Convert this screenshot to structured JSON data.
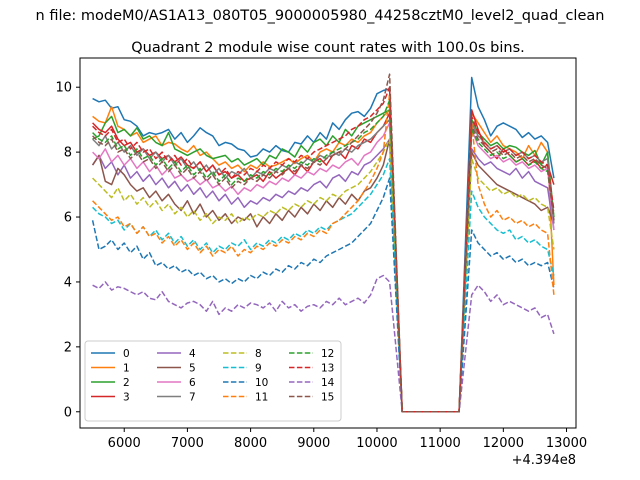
{
  "page": {
    "suptitle": "n file: modeM0/AS1A13_080T05_9000005980_44258cztM0_level2_quad_clean",
    "axes_offset_label": "+4.394e8"
  },
  "chart_data": {
    "type": "line",
    "title": "Quadrant 2 module wise count rates with 100.0s bins.",
    "xlabel": "",
    "ylabel": "",
    "x_offset": 439400000,
    "xlim": [
      5300,
      13150
    ],
    "ylim": [
      -0.5,
      10.9
    ],
    "x_ticks": [
      6000,
      7000,
      8000,
      9000,
      10000,
      11000,
      12000,
      13000
    ],
    "y_ticks": [
      0,
      2,
      4,
      6,
      8,
      10
    ],
    "grid": false,
    "legend_position": "lower-left",
    "legend_columns": 4,
    "x": [
      5500,
      5600,
      5700,
      5800,
      5900,
      6000,
      6100,
      6200,
      6300,
      6400,
      6500,
      6600,
      6700,
      6800,
      6900,
      7000,
      7100,
      7200,
      7300,
      7400,
      7500,
      7600,
      7700,
      7800,
      7900,
      8000,
      8100,
      8200,
      8300,
      8400,
      8500,
      8600,
      8700,
      8800,
      8900,
      9000,
      9100,
      9200,
      9300,
      9400,
      9500,
      9600,
      9700,
      9800,
      9900,
      10000,
      10100,
      10200,
      10400,
      11300,
      11500,
      11600,
      11700,
      11800,
      11900,
      12000,
      12100,
      12200,
      12300,
      12400,
      12500,
      12600,
      12700,
      12800
    ],
    "series": [
      {
        "name": "0",
        "color": "#1f77b4",
        "dash": "solid",
        "values": [
          9.65,
          9.55,
          9.6,
          9.35,
          9.4,
          9.0,
          8.95,
          8.8,
          8.5,
          8.6,
          8.55,
          8.6,
          8.7,
          8.4,
          8.6,
          8.3,
          8.5,
          8.75,
          8.6,
          8.5,
          8.2,
          8.3,
          8.25,
          8.1,
          8.05,
          7.85,
          7.9,
          8.1,
          8.0,
          8.2,
          8.05,
          8.0,
          8.3,
          8.25,
          8.5,
          8.3,
          8.6,
          8.4,
          8.9,
          8.7,
          9.0,
          9.2,
          9.25,
          9.1,
          9.35,
          9.8,
          9.9,
          9.95,
          0.0,
          0.0,
          10.3,
          9.4,
          9.0,
          8.5,
          8.8,
          8.9,
          8.8,
          8.7,
          8.45,
          8.6,
          8.4,
          8.5,
          8.3,
          7.2
        ]
      },
      {
        "name": "1",
        "color": "#ff7f0e",
        "dash": "solid",
        "values": [
          9.1,
          8.95,
          8.9,
          9.4,
          8.8,
          8.7,
          8.5,
          8.6,
          8.3,
          8.4,
          8.5,
          8.2,
          8.3,
          8.25,
          8.1,
          8.0,
          8.2,
          7.9,
          8.0,
          7.8,
          7.6,
          7.7,
          7.5,
          7.6,
          7.4,
          7.6,
          7.5,
          7.7,
          7.55,
          7.6,
          7.7,
          7.8,
          7.65,
          7.8,
          7.9,
          7.7,
          8.0,
          8.1,
          8.0,
          8.3,
          8.2,
          8.4,
          8.3,
          8.5,
          8.6,
          8.9,
          9.1,
          9.3,
          0.0,
          0.0,
          9.2,
          8.9,
          8.6,
          8.3,
          8.5,
          8.2,
          8.1,
          8.0,
          7.8,
          8.2,
          7.9,
          8.3,
          8.0,
          3.9
        ]
      },
      {
        "name": "2",
        "color": "#2ca02c",
        "dash": "solid",
        "values": [
          8.4,
          8.5,
          8.9,
          9.1,
          8.6,
          8.7,
          8.5,
          8.75,
          8.4,
          8.5,
          8.3,
          8.2,
          8.6,
          8.1,
          8.0,
          7.9,
          8.0,
          8.1,
          7.9,
          7.8,
          7.85,
          7.9,
          7.7,
          7.8,
          7.6,
          7.7,
          7.8,
          7.6,
          7.9,
          7.8,
          8.1,
          8.0,
          7.85,
          8.2,
          8.0,
          8.3,
          8.4,
          8.2,
          8.5,
          8.3,
          8.7,
          8.5,
          8.8,
          8.9,
          9.0,
          9.1,
          9.2,
          9.3,
          0.0,
          0.0,
          9.0,
          8.6,
          8.4,
          8.2,
          8.3,
          8.1,
          8.2,
          8.15,
          8.0,
          7.9,
          8.05,
          7.6,
          8.0,
          6.0
        ]
      },
      {
        "name": "3",
        "color": "#d62728",
        "dash": "solid",
        "values": [
          8.9,
          8.7,
          8.6,
          8.8,
          8.4,
          8.2,
          8.3,
          8.0,
          8.1,
          7.9,
          8.0,
          7.8,
          7.9,
          7.7,
          7.85,
          7.6,
          7.5,
          7.7,
          7.4,
          7.6,
          7.3,
          7.4,
          7.2,
          7.3,
          7.1,
          7.2,
          7.3,
          7.1,
          7.4,
          7.2,
          7.35,
          7.5,
          7.3,
          7.6,
          7.4,
          7.7,
          7.8,
          7.6,
          7.9,
          8.0,
          7.8,
          8.2,
          8.1,
          8.4,
          8.3,
          8.6,
          8.8,
          9.2,
          0.0,
          0.0,
          9.3,
          8.7,
          8.2,
          8.0,
          7.8,
          8.1,
          7.9,
          7.7,
          7.8,
          7.6,
          7.75,
          7.5,
          7.6,
          7.0
        ]
      },
      {
        "name": "4",
        "color": "#9467bd",
        "dash": "solid",
        "values": [
          7.6,
          7.9,
          7.5,
          7.7,
          7.3,
          7.6,
          7.2,
          7.4,
          7.1,
          7.3,
          7.0,
          7.2,
          6.9,
          7.1,
          6.8,
          7.0,
          6.7,
          6.9,
          6.6,
          6.8,
          6.5,
          6.7,
          6.4,
          6.6,
          6.3,
          6.5,
          6.4,
          6.6,
          6.5,
          6.7,
          6.6,
          6.8,
          6.7,
          6.9,
          6.8,
          7.0,
          7.1,
          6.9,
          7.2,
          7.3,
          7.1,
          7.4,
          7.3,
          7.6,
          7.7,
          7.9,
          8.1,
          8.4,
          0.0,
          0.0,
          8.1,
          7.8,
          7.6,
          7.7,
          7.5,
          7.4,
          7.3,
          7.5,
          7.2,
          7.4,
          7.1,
          7.0,
          6.9,
          5.6
        ]
      },
      {
        "name": "5",
        "color": "#8c564b",
        "dash": "solid",
        "values": [
          7.6,
          7.9,
          7.1,
          7.0,
          7.5,
          7.3,
          7.0,
          6.8,
          6.9,
          6.6,
          6.8,
          6.5,
          6.7,
          6.4,
          6.2,
          6.5,
          6.1,
          6.4,
          6.0,
          6.2,
          5.9,
          6.1,
          5.8,
          6.0,
          5.9,
          6.1,
          5.7,
          6.0,
          5.8,
          6.1,
          5.9,
          6.2,
          6.0,
          6.3,
          6.1,
          6.4,
          6.2,
          6.5,
          6.3,
          6.6,
          6.4,
          6.7,
          6.5,
          6.8,
          6.9,
          7.2,
          7.6,
          8.4,
          0.0,
          0.0,
          8.0,
          7.6,
          7.4,
          7.2,
          7.0,
          6.9,
          6.8,
          6.7,
          6.6,
          6.5,
          6.4,
          6.2,
          6.3,
          5.8
        ]
      },
      {
        "name": "6",
        "color": "#e377c2",
        "dash": "solid",
        "values": [
          8.0,
          7.8,
          8.1,
          7.7,
          7.9,
          7.6,
          7.8,
          7.5,
          7.7,
          7.4,
          7.6,
          7.3,
          7.5,
          7.2,
          7.3,
          7.1,
          7.2,
          7.0,
          7.15,
          6.9,
          7.0,
          6.8,
          6.95,
          6.7,
          6.9,
          6.8,
          7.0,
          6.9,
          7.1,
          7.0,
          7.2,
          7.1,
          7.3,
          7.2,
          7.4,
          7.3,
          7.5,
          7.4,
          7.6,
          7.5,
          7.7,
          7.8,
          7.6,
          7.9,
          8.0,
          8.3,
          8.5,
          8.9,
          0.0,
          0.0,
          8.7,
          8.2,
          8.0,
          7.8,
          7.9,
          7.7,
          7.8,
          7.6,
          7.7,
          7.5,
          7.6,
          7.4,
          7.5,
          5.6
        ]
      },
      {
        "name": "7",
        "color": "#7f7f7f",
        "dash": "solid",
        "values": [
          8.4,
          8.2,
          8.5,
          8.1,
          8.3,
          8.0,
          8.2,
          7.9,
          8.1,
          7.8,
          8.0,
          7.7,
          7.9,
          7.6,
          7.8,
          7.5,
          7.7,
          7.4,
          7.6,
          7.3,
          7.5,
          7.2,
          7.4,
          7.3,
          7.5,
          7.2,
          7.4,
          7.3,
          7.5,
          7.4,
          7.6,
          7.5,
          7.7,
          7.6,
          7.8,
          7.7,
          7.9,
          7.8,
          8.0,
          7.9,
          8.1,
          8.0,
          8.2,
          8.3,
          8.4,
          8.6,
          8.8,
          9.0,
          0.0,
          0.0,
          8.9,
          8.5,
          8.3,
          8.1,
          8.2,
          8.0,
          8.1,
          7.9,
          8.0,
          7.8,
          7.9,
          7.7,
          7.8,
          5.8
        ]
      },
      {
        "name": "8",
        "color": "#bcbd22",
        "dash": "dashed",
        "values": [
          7.2,
          7.0,
          6.8,
          6.6,
          6.9,
          6.5,
          6.7,
          6.4,
          6.6,
          6.3,
          6.5,
          6.2,
          6.4,
          6.1,
          6.3,
          6.0,
          6.2,
          5.9,
          6.1,
          5.8,
          6.0,
          5.9,
          6.1,
          5.8,
          6.0,
          5.9,
          6.1,
          6.0,
          6.2,
          6.1,
          6.3,
          6.2,
          6.4,
          6.3,
          6.5,
          6.4,
          6.6,
          6.5,
          6.7,
          6.6,
          6.8,
          6.9,
          7.0,
          7.2,
          7.4,
          7.7,
          8.0,
          8.4,
          0.0,
          0.0,
          7.8,
          7.2,
          7.0,
          6.8,
          6.9,
          6.7,
          6.8,
          6.6,
          6.7,
          6.5,
          6.6,
          6.4,
          6.3,
          5.0
        ]
      },
      {
        "name": "9",
        "color": "#17becf",
        "dash": "dashed",
        "values": [
          6.3,
          6.1,
          6.0,
          5.8,
          5.9,
          5.6,
          5.8,
          5.5,
          5.7,
          5.4,
          5.6,
          5.3,
          5.5,
          5.2,
          5.4,
          5.1,
          5.3,
          5.0,
          5.2,
          4.9,
          5.1,
          5.0,
          5.2,
          5.1,
          5.3,
          5.0,
          5.2,
          5.1,
          5.3,
          5.2,
          5.4,
          5.3,
          5.5,
          5.4,
          5.6,
          5.5,
          5.7,
          5.6,
          5.8,
          5.9,
          6.0,
          6.1,
          6.3,
          6.5,
          6.7,
          7.0,
          7.3,
          7.8,
          0.0,
          0.0,
          6.8,
          6.3,
          6.0,
          5.8,
          5.6,
          5.5,
          5.6,
          5.3,
          5.4,
          5.2,
          5.3,
          5.1,
          5.0,
          4.2
        ]
      },
      {
        "name": "10",
        "color": "#1f77b4",
        "dash": "dashed",
        "values": [
          5.9,
          5.0,
          5.1,
          5.3,
          5.0,
          5.2,
          4.9,
          5.1,
          4.7,
          4.9,
          4.5,
          4.6,
          4.4,
          4.5,
          4.3,
          4.4,
          4.2,
          4.3,
          4.1,
          4.2,
          4.0,
          4.1,
          3.95,
          4.1,
          4.0,
          4.2,
          4.1,
          4.3,
          4.2,
          4.4,
          4.3,
          4.5,
          4.4,
          4.6,
          4.5,
          4.7,
          4.6,
          4.8,
          4.9,
          5.0,
          5.1,
          5.2,
          5.4,
          5.6,
          5.8,
          6.2,
          6.6,
          7.2,
          0.0,
          0.0,
          5.6,
          5.2,
          5.0,
          4.8,
          4.9,
          4.7,
          4.8,
          4.6,
          4.7,
          4.5,
          4.6,
          4.5,
          4.6,
          3.8
        ]
      },
      {
        "name": "11",
        "color": "#ff7f0e",
        "dash": "dashed",
        "values": [
          6.5,
          6.3,
          6.1,
          5.9,
          6.0,
          5.7,
          5.8,
          5.5,
          5.7,
          5.4,
          5.5,
          5.2,
          5.4,
          5.1,
          5.3,
          5.0,
          5.2,
          4.9,
          5.1,
          4.8,
          5.0,
          4.9,
          5.1,
          4.8,
          5.0,
          4.9,
          5.1,
          5.0,
          5.2,
          5.1,
          5.3,
          5.2,
          5.4,
          5.3,
          5.5,
          5.4,
          5.6,
          5.5,
          5.8,
          5.9,
          6.1,
          6.3,
          6.5,
          6.8,
          7.1,
          7.5,
          8.0,
          9.8,
          0.0,
          0.0,
          8.9,
          7.0,
          6.4,
          6.0,
          6.2,
          5.9,
          6.0,
          5.8,
          5.9,
          5.7,
          5.8,
          5.6,
          5.5,
          3.6
        ]
      },
      {
        "name": "12",
        "color": "#2ca02c",
        "dash": "dashed",
        "values": [
          8.6,
          8.4,
          8.3,
          8.5,
          8.1,
          8.2,
          7.9,
          8.1,
          7.8,
          7.9,
          7.6,
          7.8,
          7.5,
          7.7,
          7.4,
          7.6,
          7.3,
          7.5,
          7.2,
          7.4,
          7.1,
          7.3,
          7.0,
          7.2,
          7.1,
          7.3,
          7.2,
          7.4,
          7.3,
          7.5,
          7.4,
          7.6,
          7.5,
          7.7,
          7.6,
          7.8,
          7.7,
          7.9,
          8.0,
          8.1,
          8.2,
          8.3,
          8.4,
          8.6,
          8.7,
          8.9,
          9.1,
          9.6,
          0.0,
          0.0,
          8.7,
          8.3,
          8.1,
          7.9,
          8.0,
          7.8,
          7.9,
          7.7,
          7.8,
          7.6,
          7.7,
          7.5,
          7.4,
          6.0
        ]
      },
      {
        "name": "13",
        "color": "#d62728",
        "dash": "dashed",
        "values": [
          8.8,
          8.6,
          8.5,
          8.7,
          8.3,
          8.4,
          8.1,
          8.3,
          8.0,
          8.1,
          7.8,
          8.0,
          7.7,
          7.9,
          7.6,
          7.8,
          7.5,
          7.7,
          7.4,
          7.6,
          7.3,
          7.5,
          7.2,
          7.4,
          7.3,
          7.5,
          7.4,
          7.6,
          7.5,
          7.7,
          7.6,
          7.8,
          7.7,
          7.9,
          7.8,
          8.0,
          8.1,
          8.2,
          8.3,
          8.4,
          8.5,
          8.7,
          8.8,
          9.0,
          9.1,
          9.3,
          9.5,
          10.0,
          0.0,
          0.0,
          9.1,
          8.6,
          8.3,
          8.1,
          8.2,
          8.0,
          8.1,
          7.9,
          8.0,
          7.8,
          7.9,
          7.7,
          7.6,
          6.2
        ]
      },
      {
        "name": "14",
        "color": "#9467bd",
        "dash": "dashed",
        "values": [
          3.9,
          3.8,
          4.0,
          3.75,
          3.85,
          3.8,
          3.7,
          3.6,
          3.7,
          3.5,
          3.45,
          3.7,
          3.4,
          3.3,
          3.2,
          3.35,
          3.4,
          3.3,
          3.1,
          3.4,
          3.0,
          3.2,
          3.1,
          3.3,
          3.2,
          3.35,
          3.3,
          3.2,
          3.35,
          3.1,
          3.4,
          3.2,
          3.3,
          3.1,
          3.25,
          3.3,
          3.2,
          3.4,
          3.3,
          3.5,
          3.3,
          3.4,
          3.5,
          3.35,
          3.6,
          4.1,
          4.2,
          4.0,
          0.0,
          0.0,
          3.6,
          3.9,
          3.7,
          3.4,
          3.6,
          3.3,
          3.4,
          3.3,
          3.2,
          3.1,
          3.2,
          2.9,
          3.0,
          2.4
        ]
      },
      {
        "name": "15",
        "color": "#8c564b",
        "dash": "dashed",
        "values": [
          8.5,
          8.3,
          8.2,
          8.4,
          8.0,
          8.1,
          7.8,
          8.0,
          7.7,
          7.8,
          7.5,
          7.7,
          7.4,
          7.6,
          7.3,
          7.5,
          7.2,
          7.4,
          7.1,
          7.3,
          7.0,
          7.2,
          6.9,
          7.1,
          7.0,
          7.2,
          7.1,
          7.3,
          7.2,
          7.4,
          7.3,
          7.5,
          7.4,
          7.6,
          7.5,
          7.7,
          7.6,
          7.8,
          7.9,
          8.0,
          8.1,
          8.3,
          8.5,
          8.7,
          8.9,
          9.2,
          9.6,
          10.4,
          0.0,
          0.0,
          8.8,
          8.4,
          8.2,
          8.0,
          8.1,
          7.9,
          8.0,
          7.8,
          7.9,
          7.7,
          7.8,
          7.6,
          7.5,
          5.9
        ]
      }
    ]
  }
}
